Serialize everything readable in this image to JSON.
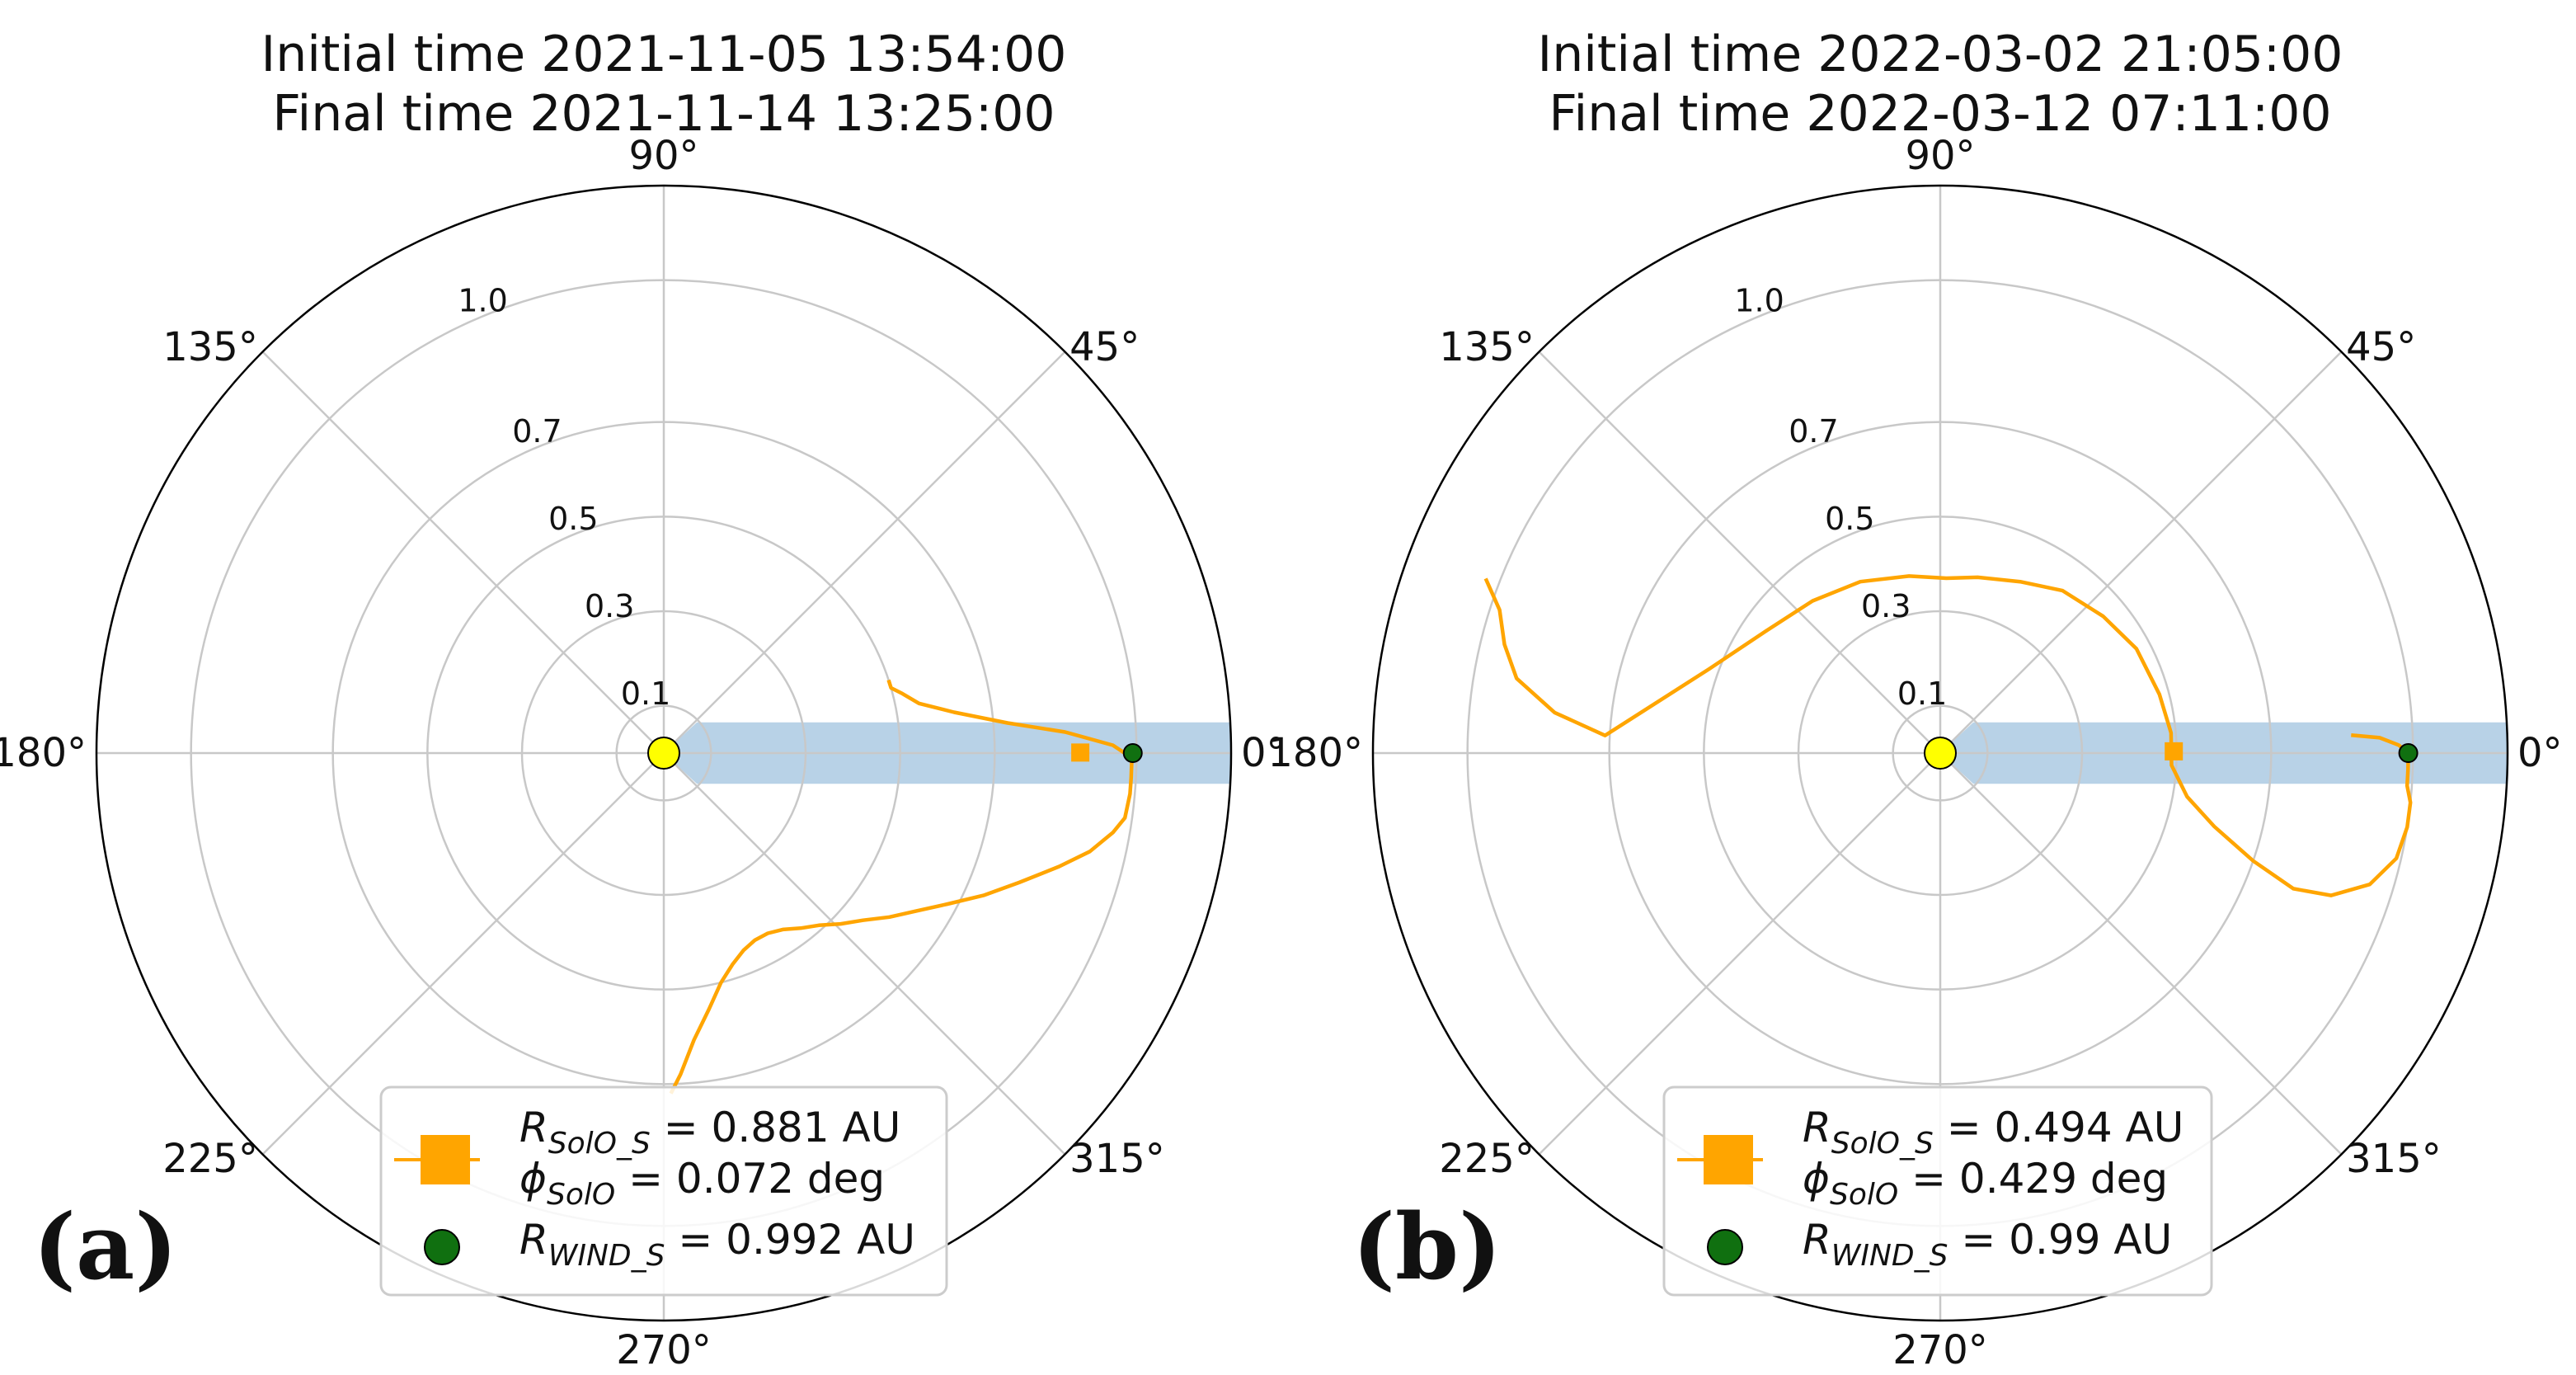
{
  "chart_data": [
    {
      "type": "polar",
      "panel_label": "(a)",
      "title_lines": [
        "Initial time 2021-11-05 13:54:00",
        "Final time 2021-11-14 13:25:00"
      ],
      "angle_tick_labels": [
        "0°",
        "45°",
        "90°",
        "135°",
        "180°",
        "225°",
        "270°",
        "315°"
      ],
      "angle_ticks_deg": [
        0,
        45,
        90,
        135,
        180,
        225,
        270,
        315
      ],
      "radial_tick_labels": [
        "0.1",
        "0.3",
        "0.5",
        "0.7",
        "1.0"
      ],
      "radial_ticks": [
        0.1,
        0.3,
        0.5,
        0.7,
        1.0
      ],
      "rmax": 1.2,
      "grid": true,
      "legend_position": "lower right",
      "colors": {
        "trajectory": "#ffa500",
        "wind": "#107010",
        "sun": "#ffff00",
        "band": "#b4d0e6"
      },
      "sun": {
        "r": 0,
        "phi": 0
      },
      "band": {
        "rmin": 0.07,
        "rmax": 1.2,
        "half_width": 0.065
      },
      "solo_trajectory": {
        "phi_deg": [
          -88.8,
          -87,
          -84,
          -80,
          -76,
          -72,
          -68,
          -64,
          -60,
          -56,
          -52,
          -48,
          -44,
          -40,
          -36,
          -32,
          -28,
          -24,
          -20,
          -16,
          -13,
          -10,
          -8,
          -5,
          -3,
          -1,
          0,
          1,
          3,
          5,
          8,
          11,
          14,
          16,
          18
        ],
        "r": [
          0.72,
          0.68,
          0.61,
          0.55,
          0.5,
          0.47,
          0.45,
          0.44,
          0.44,
          0.45,
          0.47,
          0.49,
          0.52,
          0.55,
          0.59,
          0.63,
          0.68,
          0.74,
          0.8,
          0.87,
          0.925,
          0.965,
          0.985,
          0.99,
          0.99,
          0.99,
          0.975,
          0.95,
          0.85,
          0.73,
          0.62,
          0.55,
          0.52,
          0.5,
          0.5
        ]
      },
      "solo_position": {
        "r": 0.881,
        "phi_deg": 0.072
      },
      "wind_position": {
        "r": 0.992,
        "phi_deg": 0
      },
      "legend": {
        "solo_r": {
          "symbol": "R",
          "subscript": "SolO_S",
          "text": " = 0.881 AU"
        },
        "solo_phi": {
          "symbol": "ϕ",
          "subscript": "SolO",
          "text": " = 0.072 deg"
        },
        "wind_r": {
          "symbol": "R",
          "subscript": "WIND_S",
          "text": " = 0.992 AU"
        }
      }
    },
    {
      "type": "polar",
      "panel_label": "(b)",
      "title_lines": [
        "Initial time 2022-03-02 21:05:00",
        "Final time 2022-03-12 07:11:00"
      ],
      "angle_tick_labels": [
        "0°",
        "45°",
        "90°",
        "135°",
        "180°",
        "225°",
        "270°",
        "315°"
      ],
      "angle_ticks_deg": [
        0,
        45,
        90,
        135,
        180,
        225,
        270,
        315
      ],
      "radial_tick_labels": [
        "0.1",
        "0.3",
        "0.5",
        "0.7",
        "1.0"
      ],
      "radial_ticks": [
        0.1,
        0.3,
        0.5,
        0.7,
        1.0
      ],
      "rmax": 1.2,
      "grid": true,
      "legend_position": "lower right",
      "colors": {
        "trajectory": "#ffa500",
        "wind": "#107010",
        "sun": "#ffff00",
        "band": "#b4d0e6"
      },
      "sun": {
        "r": 0,
        "phi": 0
      },
      "band": {
        "rmin": 0.07,
        "rmax": 1.2,
        "half_width": 0.065
      },
      "solo_trajectory": {
        "phi_deg": [
          159,
          162,
          166,
          170,
          174,
          177,
          160,
          145,
          130,
          115,
          100,
          88,
          78,
          65,
          53,
          40,
          28,
          15,
          5,
          -3,
          -10,
          -15,
          -19,
          -21,
          -20,
          -17,
          -13,
          -9,
          -6,
          -4,
          -2,
          0,
          1,
          2,
          2.5
        ],
        "r": [
          1.03,
          0.98,
          0.95,
          0.91,
          0.82,
          0.71,
          0.52,
          0.45,
          0.42,
          0.4,
          0.38,
          0.37,
          0.38,
          0.4,
          0.43,
          0.45,
          0.47,
          0.48,
          0.49,
          0.49,
          0.53,
          0.6,
          0.7,
          0.8,
          0.88,
          0.95,
          0.99,
          1.0,
          1.0,
          0.99,
          0.99,
          0.99,
          0.97,
          0.93,
          0.87
        ]
      },
      "solo_position": {
        "r": 0.494,
        "phi_deg": 0.429
      },
      "wind_position": {
        "r": 0.99,
        "phi_deg": 0
      },
      "legend": {
        "solo_r": {
          "symbol": "R",
          "subscript": "SolO_S",
          "text": " = 0.494 AU"
        },
        "solo_phi": {
          "symbol": "ϕ",
          "subscript": "SolO",
          "text": " = 0.429 deg"
        },
        "wind_r": {
          "symbol": "R",
          "subscript": "WIND_S",
          "text": " = 0.99 AU"
        }
      }
    }
  ]
}
